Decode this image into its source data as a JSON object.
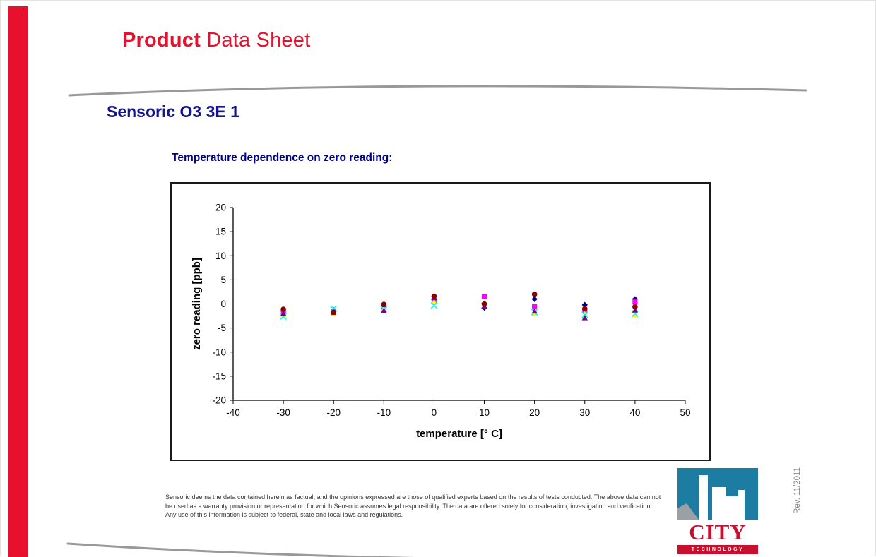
{
  "page": {
    "title_bold": "Product",
    "title_rest": "Data Sheet",
    "product_heading": "Sensoric O3 3E 1",
    "chart_heading": "Temperature dependence on zero reading:"
  },
  "footer": {
    "disclaimer": "Sensoric deems the data contained herein as factual, and the opinions expressed are those of qualified experts based on the results of tests conducted. The above data can not be used as a warranty provision or representation for which Sensoric assumes legal responsibility. The data are offered solely for consideration, investigation and verification. Any use of this information is subject to federal, state and local laws and regulations."
  },
  "logo": {
    "name": "CITY",
    "tagline": "TECHNOLOGY"
  },
  "revision": "Rev. 11/2011",
  "colors": {
    "accent_red": "#E8112D",
    "heading_navy": "#00008B",
    "logo_teal": "#1C7CA2",
    "logo_red": "#C8102E",
    "swoosh_gray": "#999999"
  },
  "chart_data": {
    "type": "scatter",
    "title": "",
    "xlabel": "temperature [° C]",
    "ylabel": "zero reading [ppb]",
    "xlim": [
      -40,
      50
    ],
    "ylim": [
      -20,
      20
    ],
    "x_ticks": [
      -40,
      -30,
      -20,
      -10,
      0,
      10,
      20,
      30,
      40,
      50
    ],
    "y_ticks": [
      20,
      15,
      10,
      5,
      0,
      -5,
      -10,
      -15,
      -20
    ],
    "grid": false,
    "legend": "none",
    "x": [
      -30,
      -20,
      -10,
      0,
      10,
      20,
      30,
      40
    ],
    "series": [
      {
        "marker": "diamond",
        "color": "#000080",
        "values": [
          -1.5,
          -1.3,
          -0.7,
          1.0,
          -0.8,
          1.0,
          -0.2,
          1.0
        ]
      },
      {
        "marker": "square",
        "color": "#FF00FF",
        "values": [
          -1.8,
          -1.6,
          -1.2,
          0.7,
          1.5,
          -0.6,
          -1.4,
          0.4
        ]
      },
      {
        "marker": "triangle",
        "color": "#FFFF00",
        "values": [
          -2.2,
          -1.9,
          -1.0,
          0.4,
          0.2,
          -2.0,
          -2.1,
          -2.3
        ]
      },
      {
        "marker": "x",
        "color": "#00FFFF",
        "values": [
          -2.6,
          -1.0,
          -1.1,
          -0.3,
          -0.4,
          -1.7,
          -2.3,
          -2.0
        ]
      },
      {
        "marker": "triangle",
        "color": "#800080",
        "values": [
          -2.0,
          -1.8,
          -1.4,
          1.3,
          -0.5,
          -1.5,
          -2.9,
          -1.3
        ]
      },
      {
        "marker": "circle",
        "color": "#8B0000",
        "values": [
          -1.1,
          -1.7,
          -0.1,
          1.6,
          0.0,
          2.0,
          -1.0,
          -0.6
        ]
      }
    ]
  }
}
